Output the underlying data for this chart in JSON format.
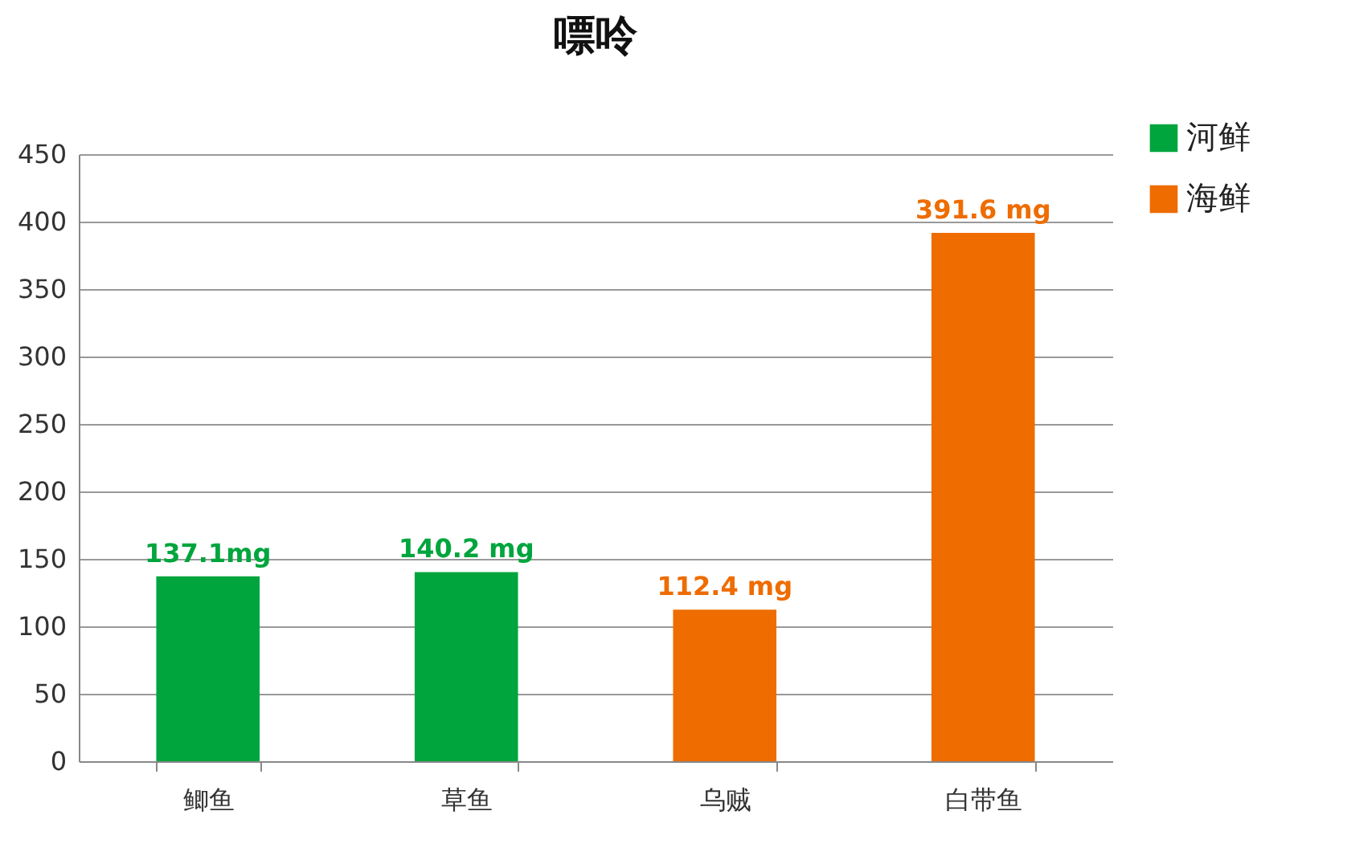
{
  "chart_data": {
    "type": "bar",
    "title": "嘌呤",
    "categories": [
      "鲫鱼",
      "草鱼",
      "乌贼",
      "白带鱼"
    ],
    "series": [
      {
        "name": "河鲜",
        "color": "#00a53d",
        "values": [
          137.1,
          140.2,
          null,
          null
        ],
        "value_labels": [
          "137.1mg",
          "140.2 mg",
          null,
          null
        ]
      },
      {
        "name": "海鲜",
        "color": "#ee6c00",
        "values": [
          null,
          null,
          112.4,
          391.6
        ],
        "value_labels": [
          null,
          null,
          "112.4 mg",
          "391.6 mg"
        ]
      }
    ],
    "ylim": [
      0,
      450
    ],
    "yticks": [
      0,
      50,
      100,
      150,
      200,
      250,
      300,
      350,
      400,
      450
    ],
    "grid": "y",
    "legend": "top right"
  }
}
